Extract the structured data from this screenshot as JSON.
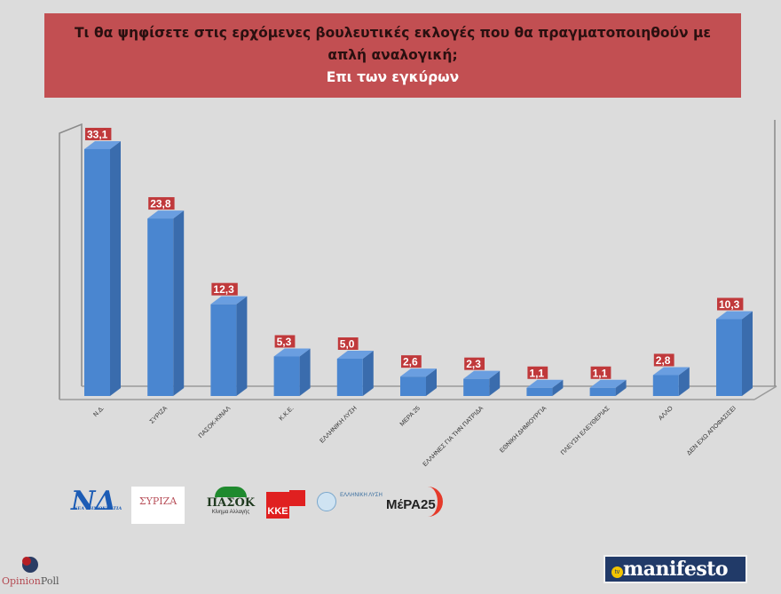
{
  "title": {
    "line1": "Τι θα ψηφίσετε στις ερχόμενες βουλευτικές εκλογές που θα πραγματοποιηθούν με",
    "line2": "απλή αναλογική;",
    "subtitle": "Επι των εγκύρων"
  },
  "chart_data": {
    "type": "bar",
    "title": "Τι θα ψηφίσετε στις ερχόμενες βουλευτικές εκλογές που θα πραγματοποιηθούν με απλή αναλογική; Επι των εγκύρων",
    "categories": [
      "Ν.Δ.",
      "ΣΥΡΙΖΑ",
      "ΠΑΣΟΚ-ΚΙΝΑΛ",
      "Κ.Κ.Ε.",
      "ΕΛΛΗΝΙΚΗ ΛΥΣΗ",
      "ΜΕΡΑ 25",
      "ΕΛΛΗΝΕΣ ΓΙΑ ΤΗΝ ΠΑΤΡΙΔΑ",
      "ΕΘΝΙΚΗ ΔΗΜΙΟΥΡΓΙΑ",
      "ΠΛΕΥΣΗ ΕΛΕΥΘΕΡΙΑΣ",
      "ΑΛΛΟ",
      "ΔΕΝ ΕΧΩ ΑΠΟΦΑΣΙΣΕΙ"
    ],
    "values": [
      33.1,
      23.8,
      12.3,
      5.3,
      5.0,
      2.6,
      2.3,
      1.1,
      1.1,
      2.8,
      10.3
    ],
    "value_labels": [
      "33,1",
      "23,8",
      "12,3",
      "5,3",
      "5,0",
      "2,6",
      "2,3",
      "1,1",
      "1,1",
      "2,8",
      "10,3"
    ],
    "xlabel": "",
    "ylabel": "",
    "ylim": [
      0,
      35
    ],
    "grid": false,
    "legend": "none",
    "style": "3d-column",
    "colors": {
      "bar": "#4a86d0",
      "bar_side": "#3a6cad",
      "bar_top": "#6a9ee0",
      "label_bg": "#c0393b",
      "label_text": "#ffffff"
    }
  },
  "logos": {
    "nd": {
      "text": "ΝΔ",
      "sub": "ΝΕΑ ΔΗΜΟΚΡΑΤΙΑ"
    },
    "syriza": {
      "text": "ΣΥΡΙΖΑ"
    },
    "pasok": {
      "text": "ΠΑΣΟΚ",
      "sub": "Κίνημα Αλλαγής"
    },
    "kke": {
      "text": "ΚΚΕ"
    },
    "elliniki_lysi": {
      "text": "ΕΛΛΗΝΙΚΗ ΛΥΣΗ"
    },
    "mera25": {
      "text": "ΜέΡΑ25"
    }
  },
  "footer": {
    "pollster_a": "Opinion",
    "pollster_b": "Poll",
    "media": "manifesto",
    "media_badge": "tv"
  },
  "colors": {
    "background": "#dcdcdc",
    "title_bg": "#c24f52",
    "title_text": "#2a1010",
    "subtitle_text": "#ffffff"
  }
}
